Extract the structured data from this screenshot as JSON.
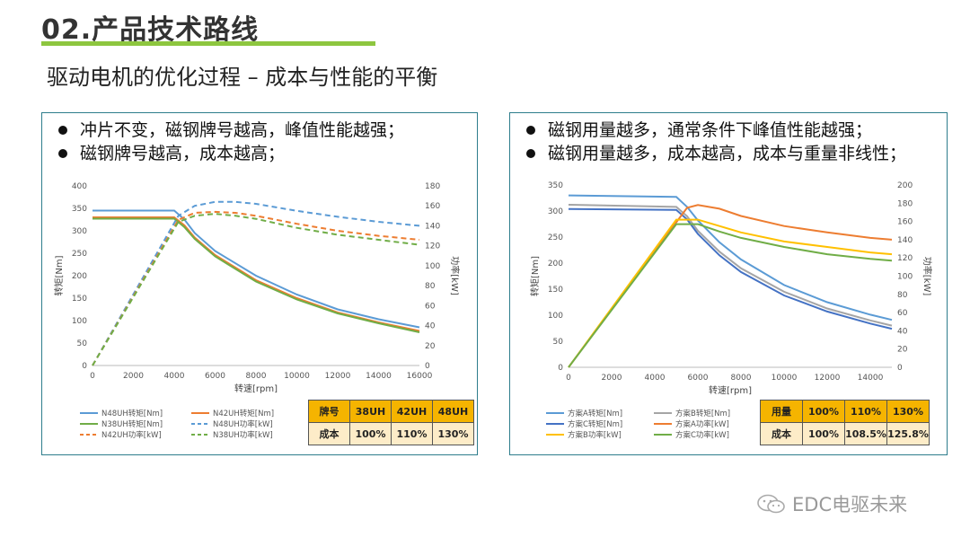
{
  "header": {
    "title": "02.产品技术路线",
    "subtitle": "驱动电机的优化过程 – 成本与性能的平衡"
  },
  "left_panel": {
    "bullets": [
      "冲片不变，磁钢牌号越高，峰值性能越强；",
      "磁钢牌号越高，成本越高；"
    ],
    "table": {
      "header": [
        "牌号",
        "38UH",
        "42UH",
        "48UH"
      ],
      "row": [
        "成本",
        "100%",
        "110%",
        "130%"
      ]
    }
  },
  "right_panel": {
    "bullets": [
      "磁钢用量越多，通常条件下峰值性能越强；",
      "磁钢用量越多，成本越高，成本与重量非线性；"
    ],
    "table": {
      "header": [
        "用量",
        "100%",
        "110%",
        "130%"
      ],
      "row": [
        "成本",
        "100%",
        "108.5%",
        "125.8%"
      ]
    }
  },
  "watermark": {
    "text": "EDC电驱未来"
  },
  "chart_data": [
    {
      "type": "line",
      "xlabel": "转速[rpm]",
      "ylabel": "转矩[Nm]",
      "y2label": "功率[kW]",
      "xlim": [
        0,
        16000
      ],
      "ylim": [
        0,
        400
      ],
      "y2lim": [
        0,
        180
      ],
      "xticks": [
        0,
        2000,
        4000,
        6000,
        8000,
        10000,
        12000,
        14000,
        16000
      ],
      "yticks": [
        0,
        50,
        100,
        150,
        200,
        250,
        300,
        350,
        400
      ],
      "y2ticks": [
        0,
        20,
        40,
        60,
        80,
        100,
        120,
        140,
        160,
        180
      ],
      "series": [
        {
          "name": "N48UH转矩[Nm]",
          "axis": "left",
          "color": "#5b9bd5",
          "dash": false,
          "x": [
            0,
            4000,
            4500,
            5000,
            6000,
            8000,
            10000,
            12000,
            14000,
            16000
          ],
          "y": [
            345,
            345,
            325,
            295,
            255,
            200,
            158,
            125,
            103,
            85
          ]
        },
        {
          "name": "N42UH转矩[Nm]",
          "axis": "left",
          "color": "#ed7d31",
          "dash": false,
          "x": [
            0,
            4000,
            4500,
            5000,
            6000,
            8000,
            10000,
            12000,
            14000,
            16000
          ],
          "y": [
            330,
            330,
            312,
            285,
            246,
            190,
            150,
            118,
            96,
            77
          ]
        },
        {
          "name": "N38UH转矩[Nm]",
          "axis": "left",
          "color": "#70ad47",
          "dash": false,
          "x": [
            0,
            4000,
            4500,
            5000,
            6000,
            8000,
            10000,
            12000,
            14000,
            16000
          ],
          "y": [
            327,
            327,
            308,
            282,
            243,
            187,
            147,
            116,
            94,
            74
          ]
        },
        {
          "name": "N48UH功率[kW]",
          "axis": "right",
          "color": "#5b9bd5",
          "dash": true,
          "x": [
            0,
            4200,
            5000,
            6000,
            7000,
            8000,
            10000,
            12000,
            14000,
            16000
          ],
          "y": [
            0,
            150,
            160,
            164,
            164,
            162,
            155,
            149,
            144,
            140
          ]
        },
        {
          "name": "N42UH功率[kW]",
          "axis": "right",
          "color": "#ed7d31",
          "dash": true,
          "x": [
            0,
            4200,
            5000,
            6000,
            7000,
            8000,
            10000,
            12000,
            14000,
            16000
          ],
          "y": [
            0,
            146,
            153,
            154,
            153,
            150,
            142,
            135,
            130,
            126
          ]
        },
        {
          "name": "N38UH功率[kW]",
          "axis": "right",
          "color": "#70ad47",
          "dash": true,
          "x": [
            0,
            4200,
            5000,
            6000,
            7000,
            8000,
            10000,
            12000,
            14000,
            16000
          ],
          "y": [
            0,
            144,
            150,
            152,
            150,
            147,
            138,
            131,
            126,
            121
          ]
        }
      ]
    },
    {
      "type": "line",
      "xlabel": "转速[rpm]",
      "ylabel": "转矩[Nm]",
      "y2label": "功率[kW]",
      "xlim": [
        0,
        15000
      ],
      "ylim": [
        0,
        350
      ],
      "y2lim": [
        0,
        200
      ],
      "xticks": [
        0,
        2000,
        4000,
        6000,
        8000,
        10000,
        12000,
        14000
      ],
      "yticks": [
        0,
        50,
        100,
        150,
        200,
        250,
        300,
        350
      ],
      "y2ticks": [
        0,
        20,
        40,
        60,
        80,
        100,
        120,
        140,
        160,
        180,
        200
      ],
      "series": [
        {
          "name": "方案A转矩[Nm]",
          "axis": "left",
          "color": "#5b9bd5",
          "dash": false,
          "x": [
            0,
            5000,
            5500,
            6000,
            7000,
            8000,
            10000,
            12000,
            14000,
            15000
          ],
          "y": [
            330,
            327,
            308,
            282,
            240,
            207,
            158,
            125,
            101,
            91
          ]
        },
        {
          "name": "方案B转矩[Nm]",
          "axis": "left",
          "color": "#a5a5a5",
          "dash": false,
          "x": [
            0,
            5000,
            5500,
            6000,
            7000,
            8000,
            10000,
            12000,
            14000,
            15000
          ],
          "y": [
            312,
            308,
            290,
            262,
            222,
            190,
            145,
            113,
            90,
            80
          ]
        },
        {
          "name": "方案C转矩[Nm]",
          "axis": "left",
          "color": "#4472c4",
          "dash": false,
          "x": [
            0,
            5000,
            5500,
            6000,
            7000,
            8000,
            10000,
            12000,
            14000,
            15000
          ],
          "y": [
            304,
            302,
            284,
            256,
            215,
            183,
            138,
            107,
            84,
            74
          ]
        },
        {
          "name": "方案A功率[kW]",
          "axis": "right",
          "color": "#ed7d31",
          "dash": false,
          "x": [
            0,
            5500,
            6000,
            7000,
            8000,
            10000,
            12000,
            14000,
            15000
          ],
          "y": [
            0,
            175,
            178,
            174,
            166,
            155,
            148,
            142,
            140
          ]
        },
        {
          "name": "方案B功率[kW]",
          "axis": "right",
          "color": "#ffc000",
          "dash": false,
          "x": [
            0,
            5000,
            6000,
            7000,
            8000,
            10000,
            12000,
            14000,
            15000
          ],
          "y": [
            0,
            162,
            162,
            155,
            148,
            138,
            132,
            126,
            124
          ]
        },
        {
          "name": "方案C功率[kW]",
          "axis": "right",
          "color": "#70ad47",
          "dash": false,
          "x": [
            0,
            5000,
            6000,
            7000,
            8000,
            10000,
            12000,
            14000,
            15000
          ],
          "y": [
            0,
            157,
            157,
            149,
            142,
            132,
            124,
            119,
            117
          ]
        }
      ]
    }
  ]
}
